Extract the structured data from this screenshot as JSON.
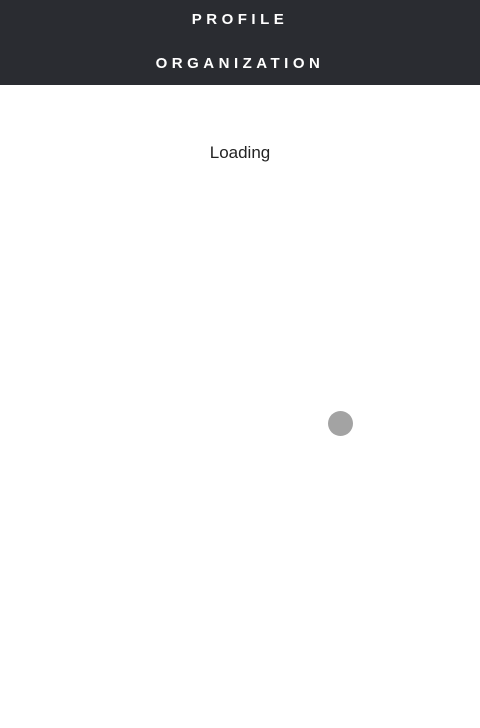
{
  "nav": {
    "profile_label": "PROFILE",
    "organization_label": "ORGANIZATION"
  },
  "main": {
    "status_text": "Loading"
  },
  "colors": {
    "nav_background": "#2a2c31",
    "nav_text": "#ffffff",
    "page_background": "#ffffff",
    "touch_indicator": "#a3a3a3"
  }
}
